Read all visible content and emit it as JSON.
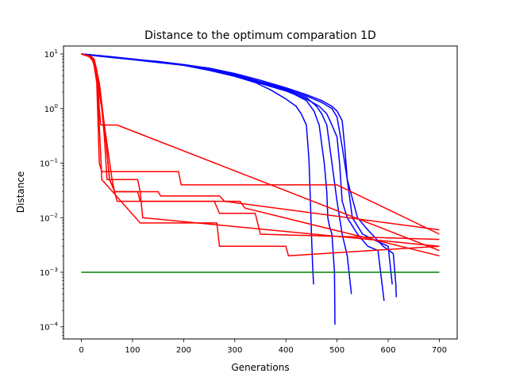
{
  "chart_data": {
    "type": "line",
    "title": "Distance to the optimum comparation 1D",
    "xlabel": "Generations",
    "ylabel": "Distance",
    "xlim": [
      -35,
      735
    ],
    "ylim": [
      6e-05,
      14
    ],
    "yscale": "log",
    "grid": false,
    "legend": "none",
    "xticks": [
      0,
      100,
      200,
      300,
      400,
      500,
      600,
      700
    ],
    "yticks": [
      {
        "value": 0.0001,
        "base": "10",
        "exp": "−4"
      },
      {
        "value": 0.001,
        "base": "10",
        "exp": "−3"
      },
      {
        "value": 0.01,
        "base": "10",
        "exp": "−2"
      },
      {
        "value": 0.1,
        "base": "10",
        "exp": "−1"
      },
      {
        "value": 1,
        "base": "10",
        "exp": "0"
      },
      {
        "value": 10,
        "base": "10",
        "exp": "1"
      }
    ],
    "series": [
      {
        "color": "#0000ff",
        "x": [
          0,
          30,
          60,
          100,
          150,
          200,
          250,
          300,
          340,
          370,
          400,
          420,
          430,
          440,
          445,
          448,
          450,
          452,
          454
        ],
        "y": [
          10,
          9.2,
          8.6,
          7.9,
          7,
          6.2,
          5,
          3.9,
          3,
          2.2,
          1.5,
          1.1,
          0.8,
          0.5,
          0.12,
          0.02,
          0.005,
          0.0015,
          0.0006
        ]
      },
      {
        "color": "#0000ff",
        "x": [
          0,
          50,
          100,
          150,
          200,
          250,
          300,
          350,
          400,
          440,
          455,
          465,
          475,
          480,
          482,
          485,
          490,
          495,
          496
        ],
        "y": [
          10,
          9,
          8,
          7.2,
          6.4,
          5.4,
          4.1,
          3,
          2.2,
          1.4,
          0.9,
          0.5,
          0.1,
          0.03,
          0.01,
          0.007,
          0.005,
          0.001,
          0.00011
        ]
      },
      {
        "color": "#0000ff",
        "x": [
          0,
          50,
          100,
          150,
          200,
          250,
          300,
          350,
          400,
          440,
          460,
          470,
          480,
          490,
          500,
          510,
          520,
          528
        ],
        "y": [
          10,
          9,
          8,
          7.2,
          6.3,
          5.3,
          4,
          2.9,
          2.2,
          1.6,
          1.1,
          0.8,
          0.5,
          0.1,
          0.02,
          0.005,
          0.002,
          0.0004
        ]
      },
      {
        "color": "#0000ff",
        "x": [
          0,
          50,
          100,
          150,
          200,
          250,
          300,
          350,
          400,
          440,
          465,
          480,
          490,
          500,
          505,
          510,
          520,
          540,
          560,
          580,
          592
        ],
        "y": [
          10,
          9,
          8,
          7.1,
          6.2,
          5.2,
          3.9,
          2.9,
          2.1,
          1.5,
          1.1,
          0.8,
          0.5,
          0.3,
          0.1,
          0.02,
          0.01,
          0.005,
          0.003,
          0.0025,
          0.0003
        ]
      },
      {
        "color": "#0000ff",
        "x": [
          0,
          50,
          100,
          150,
          200,
          250,
          300,
          350,
          400,
          440,
          470,
          490,
          500,
          510,
          520,
          530,
          550,
          570,
          600,
          608
        ],
        "y": [
          10,
          9.1,
          8.1,
          7.2,
          6.3,
          5.4,
          4.2,
          3.1,
          2.3,
          1.7,
          1.3,
          1,
          0.7,
          0.2,
          0.05,
          0.01,
          0.005,
          0.004,
          0.003,
          0.0006
        ]
      },
      {
        "color": "#0000ff",
        "x": [
          0,
          50,
          100,
          150,
          200,
          250,
          300,
          350,
          400,
          440,
          470,
          490,
          500,
          510,
          515,
          520,
          540,
          560,
          590,
          610,
          615,
          616
        ],
        "y": [
          10,
          9,
          8,
          7.3,
          6.4,
          5.5,
          4.4,
          3.3,
          2.4,
          1.8,
          1.4,
          1.1,
          0.9,
          0.6,
          0.2,
          0.05,
          0.01,
          0.006,
          0.003,
          0.0022,
          0.0006,
          0.00035
        ]
      },
      {
        "color": "#ff0000",
        "x": [
          0,
          20,
          25,
          28,
          32,
          35,
          38,
          40,
          42,
          45,
          50,
          55,
          60,
          65,
          70,
          700
        ],
        "y": [
          10,
          9,
          7,
          5,
          3,
          1,
          0.5,
          0.5,
          0.5,
          0.5,
          0.5,
          0.5,
          0.5,
          0.5,
          0.5,
          0.0025
        ]
      },
      {
        "color": "#ff0000",
        "x": [
          0,
          20,
          25,
          30,
          35,
          40,
          45,
          190,
          195,
          500,
          700
        ],
        "y": [
          10,
          9,
          6,
          3,
          0.1,
          0.07,
          0.07,
          0.07,
          0.04,
          0.04,
          0.005
        ]
      },
      {
        "color": "#ff0000",
        "x": [
          0,
          20,
          25,
          30,
          40,
          45,
          50,
          60,
          110,
          115,
          120,
          700
        ],
        "y": [
          10,
          9,
          8,
          5,
          1,
          0.3,
          0.05,
          0.05,
          0.05,
          0.03,
          0.01,
          0.003
        ]
      },
      {
        "color": "#ff0000",
        "x": [
          0,
          15,
          25,
          35,
          45,
          55,
          65,
          150,
          155,
          270,
          280,
          700
        ],
        "y": [
          10,
          9,
          7,
          2,
          0.5,
          0.05,
          0.03,
          0.03,
          0.025,
          0.025,
          0.02,
          0.006
        ]
      },
      {
        "color": "#ff0000",
        "x": [
          0,
          15,
          25,
          35,
          45,
          55,
          60,
          65,
          70,
          310,
          320,
          700
        ],
        "y": [
          10,
          9,
          8,
          3,
          0.5,
          0.05,
          0.04,
          0.03,
          0.02,
          0.02,
          0.015,
          0.002
        ]
      },
      {
        "color": "#ff0000",
        "x": [
          0,
          15,
          25,
          30,
          45,
          60,
          65,
          110,
          115,
          260,
          270,
          340,
          350,
          700
        ],
        "y": [
          10,
          9,
          7,
          4,
          0.5,
          0.05,
          0.03,
          0.03,
          0.02,
          0.02,
          0.012,
          0.012,
          0.005,
          0.004
        ]
      },
      {
        "color": "#ff0000",
        "x": [
          0,
          15,
          25,
          30,
          35,
          40,
          115,
          265,
          270,
          400,
          405,
          700
        ],
        "y": [
          10,
          9,
          8,
          5,
          0.5,
          0.05,
          0.008,
          0.008,
          0.003,
          0.003,
          0.002,
          0.003
        ]
      },
      {
        "color": "#008000",
        "x": [
          0,
          700
        ],
        "y": [
          0.001,
          0.001
        ]
      }
    ]
  }
}
